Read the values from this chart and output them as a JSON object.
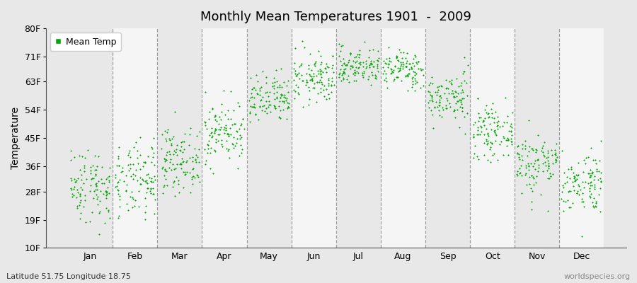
{
  "title": "Monthly Mean Temperatures 1901  -  2009",
  "ylabel": "Temperature",
  "xlabel": "",
  "bottom_left": "Latitude 51.75 Longitude 18.75",
  "bottom_right": "worldspecies.org",
  "legend_label": "Mean Temp",
  "dot_color": "#00AA00",
  "background_color": "#E8E8E8",
  "band_color": "#F5F5F5",
  "yticks": [
    10,
    19,
    28,
    36,
    45,
    54,
    63,
    71,
    80
  ],
  "ytick_labels": [
    "10F",
    "19F",
    "28F",
    "36F",
    "45F",
    "54F",
    "63F",
    "71F",
    "80F"
  ],
  "ylim": [
    10,
    80
  ],
  "months": [
    "Jan",
    "Feb",
    "Mar",
    "Apr",
    "May",
    "Jun",
    "Jul",
    "Aug",
    "Sep",
    "Oct",
    "Nov",
    "Dec"
  ],
  "mean_temps_f": [
    30,
    31,
    38,
    47,
    57,
    64,
    68,
    67,
    58,
    47,
    37,
    31
  ],
  "std_temps_f": [
    6,
    6,
    5,
    5,
    4,
    4,
    3,
    3,
    4,
    4,
    5,
    5
  ],
  "n_years": 109,
  "seed": 42,
  "xlim_left": -0.5,
  "xlim_right": 12.5
}
